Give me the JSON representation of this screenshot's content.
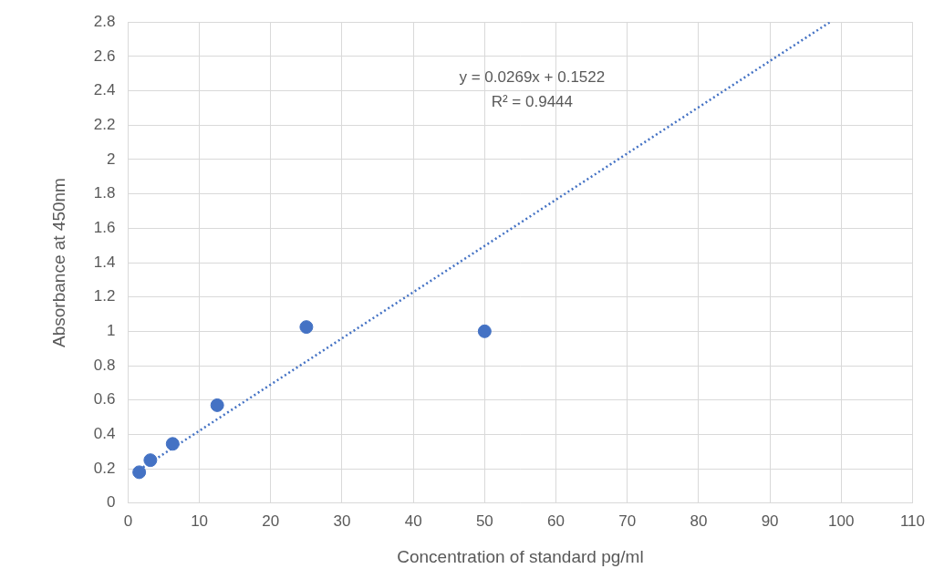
{
  "chart_data": {
    "type": "scatter",
    "x_label": "Concentration of standard pg/ml",
    "y_label": "Absorbance at 450nm",
    "x": [
      1.5625,
      3.125,
      6.25,
      12.5,
      25,
      50
    ],
    "values": [
      0.18,
      0.25,
      0.345,
      0.57,
      1.025,
      1.0
    ],
    "color": "#4472c4",
    "marker": "circle",
    "trendline": {
      "slope": 0.0269,
      "intercept": 0.1522,
      "r_squared": 0.9444,
      "x": [
        1.5625,
        100
      ],
      "line_style": "dotted",
      "color": "#4472c4"
    },
    "annotations": [
      "y = 0.0269x + 0.1522",
      "R² = 0.9444"
    ],
    "xlim": [
      0,
      110
    ],
    "xticks": [
      0,
      10,
      20,
      30,
      40,
      50,
      60,
      70,
      80,
      90,
      100,
      110
    ],
    "ylim": [
      0,
      2.8
    ],
    "yticks": [
      0,
      0.2,
      0.4,
      0.6,
      0.8,
      1,
      1.2,
      1.4,
      1.6,
      1.8,
      2,
      2.2,
      2.4,
      2.6,
      2.8
    ],
    "grid": true
  }
}
